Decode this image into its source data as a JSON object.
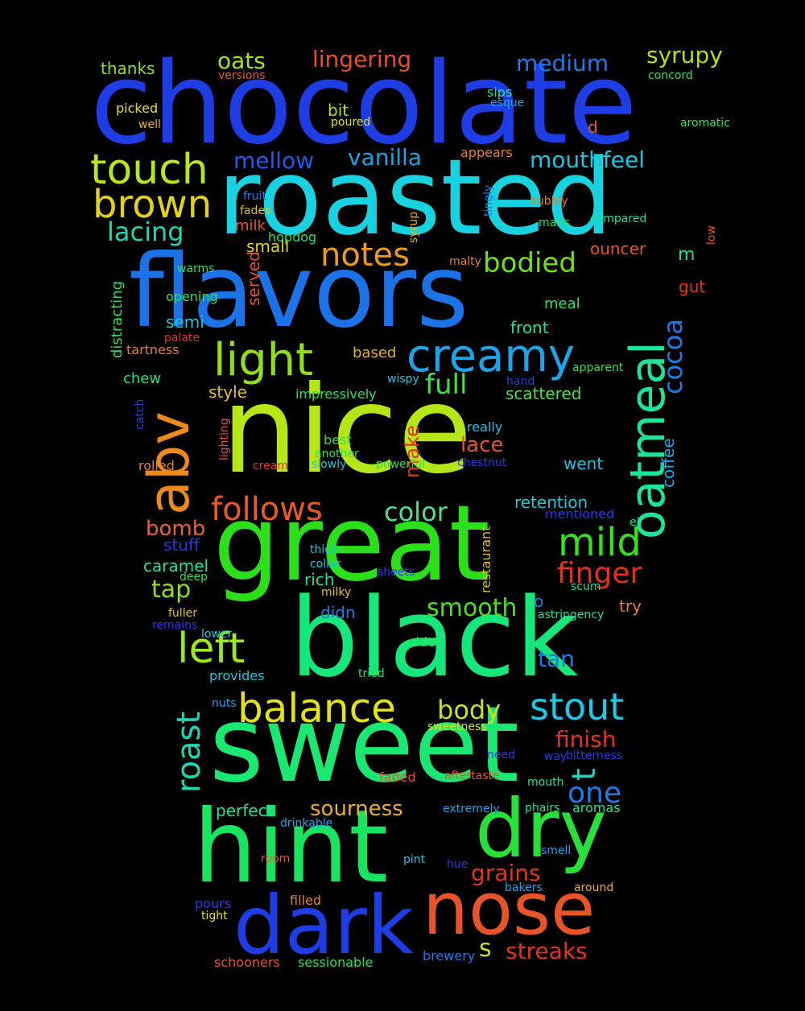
{
  "palette": {
    "background": "#000000"
  },
  "words": [
    {
      "text": "chocolate",
      "color": "#1e3de4"
    },
    {
      "text": "roasted",
      "color": "#18d2e0"
    },
    {
      "text": "flavors",
      "color": "#1c73e8"
    },
    {
      "text": "nice",
      "color": "#b5e617"
    },
    {
      "text": "great",
      "color": "#2be01a"
    },
    {
      "text": "black",
      "color": "#17e67a"
    },
    {
      "text": "sweet",
      "color": "#1ae872"
    },
    {
      "text": "hint",
      "color": "#1ae35f"
    },
    {
      "text": "dry",
      "color": "#27e03a"
    },
    {
      "text": "dark",
      "color": "#1e3de4"
    },
    {
      "text": "nose",
      "color": "#e8542a"
    },
    {
      "text": "abv",
      "color": "#ec8a1c"
    },
    {
      "text": "oatmeal",
      "color": "#1ee39a"
    },
    {
      "text": "creamy",
      "color": "#1ca3e8"
    },
    {
      "text": "light",
      "color": "#8fe01a"
    },
    {
      "text": "touch",
      "color": "#b7e61c"
    },
    {
      "text": "brown",
      "color": "#e2d21a"
    },
    {
      "text": "left",
      "color": "#9be81e"
    },
    {
      "text": "balance",
      "color": "#e2e21c"
    },
    {
      "text": "stout",
      "color": "#1bc9e8"
    },
    {
      "text": "roast",
      "color": "#1ed6b3"
    },
    {
      "text": "notes",
      "color": "#ec9a1a"
    },
    {
      "text": "follows",
      "color": "#e85a24"
    },
    {
      "text": "mild",
      "color": "#36e01a"
    },
    {
      "text": "finger",
      "color": "#e4301c"
    },
    {
      "text": "lacing",
      "color": "#1ed6b3"
    },
    {
      "text": "oats",
      "color": "#a6e61c"
    },
    {
      "text": "lingering",
      "color": "#e8502a"
    },
    {
      "text": "medium",
      "color": "#1c7be8"
    },
    {
      "text": "syrupy",
      "color": "#b0e01a"
    },
    {
      "text": "mouthfeel",
      "color": "#1cc6e0"
    },
    {
      "text": "vanilla",
      "color": "#1ca3e8"
    },
    {
      "text": "mellow",
      "color": "#1f5ae8"
    },
    {
      "text": "bodied",
      "color": "#6fe01a"
    },
    {
      "text": "full",
      "color": "#3fe04a"
    },
    {
      "text": "cocoa",
      "color": "#1c7be8"
    },
    {
      "text": "color",
      "color": "#4ee38a"
    },
    {
      "text": "bomb",
      "color": "#e8642a"
    },
    {
      "text": "body",
      "color": "#c9e01a"
    },
    {
      "text": "tap",
      "color": "#8fe01a"
    },
    {
      "text": "smooth",
      "color": "#4fe01a"
    },
    {
      "text": "sourness",
      "color": "#e8b21e"
    },
    {
      "text": "grains",
      "color": "#e4341c"
    },
    {
      "text": "streaks",
      "color": "#e4341c"
    },
    {
      "text": "one",
      "color": "#1c7be8"
    },
    {
      "text": "finish",
      "color": "#e4341c"
    },
    {
      "text": "tan",
      "color": "#1c7be8"
    },
    {
      "text": "t",
      "color": "#1cd6c0"
    },
    {
      "text": "s",
      "color": "#c9e01a"
    },
    {
      "text": "make",
      "color": "#e4341c"
    },
    {
      "text": "lace",
      "color": "#e8542a"
    },
    {
      "text": "coffee",
      "color": "#1ca3e8"
    },
    {
      "text": "m",
      "color": "#1ee39a"
    },
    {
      "text": "caramel",
      "color": "#1ee39a"
    },
    {
      "text": "stuff",
      "color": "#2a3ae8"
    },
    {
      "text": "rich",
      "color": "#1ee39a"
    },
    {
      "text": "didn",
      "color": "#1c7be8"
    },
    {
      "text": "retention",
      "color": "#1cc6e0"
    },
    {
      "text": "went",
      "color": "#1cc6e0"
    },
    {
      "text": "scattered",
      "color": "#4ee34a"
    },
    {
      "text": "style",
      "color": "#e2c21a"
    },
    {
      "text": "chew",
      "color": "#1ee37a"
    },
    {
      "text": "semi",
      "color": "#1cc6e0"
    },
    {
      "text": "meal",
      "color": "#2ee05a"
    },
    {
      "text": "front",
      "color": "#1ee39a"
    },
    {
      "text": "ouncer",
      "color": "#e8542a"
    },
    {
      "text": "small",
      "color": "#e2d21a"
    },
    {
      "text": "milk",
      "color": "#e8542a"
    },
    {
      "text": "served",
      "color": "#e8542a"
    },
    {
      "text": "perfect",
      "color": "#1ee3a0"
    },
    {
      "text": "gut",
      "color": "#e4341c"
    },
    {
      "text": "try",
      "color": "#e8802a"
    },
    {
      "text": "based",
      "color": "#e8b21e"
    },
    {
      "text": "opening",
      "color": "#2ee05a"
    },
    {
      "text": "distracting",
      "color": "#2ee05a"
    },
    {
      "text": "thanks",
      "color": "#8fe01a"
    },
    {
      "text": "picked",
      "color": "#e2e21a"
    },
    {
      "text": "bit",
      "color": "#b7e01a"
    },
    {
      "text": "hopdog",
      "color": "#2ee05a"
    },
    {
      "text": "impressively",
      "color": "#2ee05a"
    },
    {
      "text": "best",
      "color": "#2ee05a"
    },
    {
      "text": "really",
      "color": "#1cc6e0"
    },
    {
      "text": "restaurant",
      "color": "#e2c21a"
    },
    {
      "text": "mentioned",
      "color": "#2a3ae8"
    },
    {
      "text": "appears",
      "color": "#e8802a"
    },
    {
      "text": "d",
      "color": "#e85a24"
    },
    {
      "text": "o",
      "color": "#1c7be8"
    },
    {
      "text": "tartness",
      "color": "#e8802a"
    },
    {
      "text": "rolled",
      "color": "#e8802a"
    },
    {
      "text": "thick",
      "color": "#1cc6e0"
    },
    {
      "text": "collar",
      "color": "#1cc6e0"
    },
    {
      "text": "deep",
      "color": "#2ee05a"
    },
    {
      "text": "fuller",
      "color": "#e2c21a"
    },
    {
      "text": "milky",
      "color": "#e2c21a"
    },
    {
      "text": "sheets",
      "color": "#2a3ae8"
    },
    {
      "text": "scum",
      "color": "#1ee39a"
    },
    {
      "text": "astringency",
      "color": "#1ee39a"
    },
    {
      "text": "side",
      "color": "#2ee05a"
    },
    {
      "text": "lower",
      "color": "#1cc6e0"
    },
    {
      "text": "remains",
      "color": "#2a3ae8"
    },
    {
      "text": "provides",
      "color": "#1cc6e0"
    },
    {
      "text": "tried",
      "color": "#2ee05a"
    },
    {
      "text": "nuts",
      "color": "#1ca3e8"
    },
    {
      "text": "sweetness",
      "color": "#e2e21a"
    },
    {
      "text": "need",
      "color": "#2a3ae8"
    },
    {
      "text": "way",
      "color": "#2a3ae8"
    },
    {
      "text": "bitterness",
      "color": "#2a3ae8"
    },
    {
      "text": "faded",
      "color": "#e8542a"
    },
    {
      "text": "aftertaste",
      "color": "#e8542a"
    },
    {
      "text": "mouth",
      "color": "#1ee39a"
    },
    {
      "text": "phairs",
      "color": "#1ee39a"
    },
    {
      "text": "aromas",
      "color": "#1ee39a"
    },
    {
      "text": "extremely",
      "color": "#1ca3e8"
    },
    {
      "text": "drinkable",
      "color": "#1ca3e8"
    },
    {
      "text": "smell",
      "color": "#1ca3e8"
    },
    {
      "text": "room",
      "color": "#e8542a"
    },
    {
      "text": "pint",
      "color": "#1cc6e0"
    },
    {
      "text": "hue",
      "color": "#2a3ae8"
    },
    {
      "text": "filled",
      "color": "#e8802a"
    },
    {
      "text": "bakers",
      "color": "#1ca3e8"
    },
    {
      "text": "around",
      "color": "#e8b21e"
    },
    {
      "text": "pours",
      "color": "#2a3ae8"
    },
    {
      "text": "tight",
      "color": "#e2e21a"
    },
    {
      "text": "schooners",
      "color": "#e8542a"
    },
    {
      "text": "sessionable",
      "color": "#2ee05a"
    },
    {
      "text": "brewery",
      "color": "#1c7be8"
    },
    {
      "text": "versions",
      "color": "#e8542a"
    },
    {
      "text": "sips",
      "color": "#1ee39a"
    },
    {
      "text": "esque",
      "color": "#1ca3e8"
    },
    {
      "text": "poured",
      "color": "#e2e21a"
    },
    {
      "text": "well",
      "color": "#e8b21e"
    },
    {
      "text": "concord",
      "color": "#2ee05a"
    },
    {
      "text": "aromatic",
      "color": "#2ee05a"
    },
    {
      "text": "fruit",
      "color": "#1c7be8"
    },
    {
      "text": "fades",
      "color": "#e2c21a"
    },
    {
      "text": "syrup",
      "color": "#e8b21e"
    },
    {
      "text": "tingly",
      "color": "#1c7be8"
    },
    {
      "text": "bubbly",
      "color": "#e8802a"
    },
    {
      "text": "malts",
      "color": "#2ee05a"
    },
    {
      "text": "compared",
      "color": "#1ee39a"
    },
    {
      "text": "low",
      "color": "#e8542a"
    },
    {
      "text": "malty",
      "color": "#e8802a"
    },
    {
      "text": "warms",
      "color": "#2ee05a"
    },
    {
      "text": "palate",
      "color": "#e4341c"
    },
    {
      "text": "wispy",
      "color": "#1cc6e0"
    },
    {
      "text": "hand",
      "color": "#2a3ae8"
    },
    {
      "text": "apparent",
      "color": "#2ee05a"
    },
    {
      "text": "catch",
      "color": "#2a3ae8"
    },
    {
      "text": "lighting",
      "color": "#e8542a"
    },
    {
      "text": "cream",
      "color": "#e4341c"
    },
    {
      "text": "another",
      "color": "#2ee05a"
    },
    {
      "text": "slowly",
      "color": "#1cc6e0"
    },
    {
      "text": "powerful",
      "color": "#2ee05a"
    },
    {
      "text": "chestnut",
      "color": "#2a3ae8"
    },
    {
      "text": "ej",
      "color": "#1ee39a"
    }
  ]
}
